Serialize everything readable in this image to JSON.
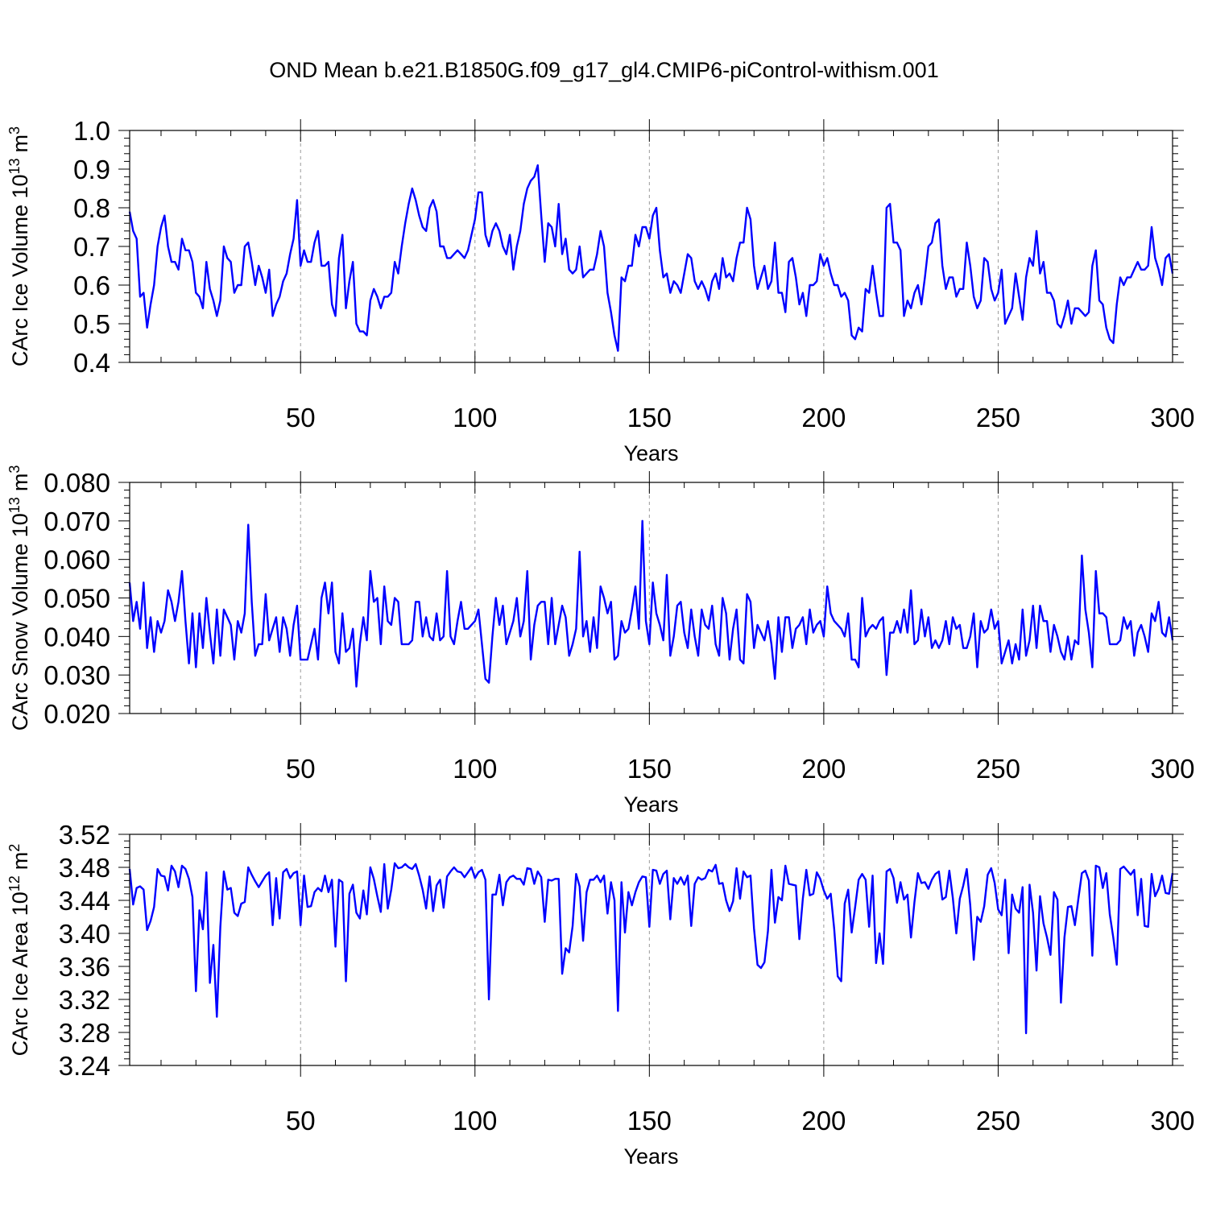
{
  "title": "OND Mean b.e21.B1850G.f09_g17_gl4.CMIP6-piControl-withism.001",
  "colors": {
    "line": "#0000ff",
    "axis": "#000000",
    "grid": "#9a9a9a"
  },
  "chart_data": [
    {
      "type": "line",
      "ylabel": "CArc Ice Volume 10",
      "ylabel_exponent": "13",
      "ylabel_unit": "m",
      "ylabel_unit_exponent": "3",
      "xlabel": "Years",
      "xlim": [
        1,
        300
      ],
      "ylim": [
        0.4,
        1.0
      ],
      "xticks": [
        50,
        100,
        150,
        200,
        250,
        300
      ],
      "xtick_labels": [
        "50",
        "100",
        "150",
        "200",
        "250",
        "300"
      ],
      "yticks": [
        0.4,
        0.5,
        0.6,
        0.7,
        0.8,
        0.9,
        1.0
      ],
      "ytick_labels": [
        "0.4",
        "0.5",
        "0.6",
        "0.7",
        "0.8",
        "0.9",
        "1.0"
      ],
      "grid": "vertical dashed",
      "series": [
        {
          "name": "CArc Ice Volume",
          "values": [
            0.79,
            0.74,
            0.72,
            0.57,
            0.58,
            0.49,
            0.55,
            0.6,
            0.7,
            0.75,
            0.78,
            0.7,
            0.66,
            0.66,
            0.64,
            0.72,
            0.69,
            0.69,
            0.66,
            0.58,
            0.57,
            0.54,
            0.66,
            0.59,
            0.56,
            0.52,
            0.56,
            0.7,
            0.67,
            0.66,
            0.58,
            0.6,
            0.6,
            0.7,
            0.71,
            0.66,
            0.6,
            0.65,
            0.62,
            0.58,
            0.64,
            0.52,
            0.55,
            0.57,
            0.61,
            0.63,
            0.68,
            0.72,
            0.82,
            0.65,
            0.69,
            0.66,
            0.66,
            0.71,
            0.74,
            0.65,
            0.65,
            0.66,
            0.55,
            0.52,
            0.67,
            0.73,
            0.54,
            0.61,
            0.66,
            0.5,
            0.48,
            0.48,
            0.47,
            0.56,
            0.59,
            0.57,
            0.54,
            0.57,
            0.57,
            0.58,
            0.66,
            0.63,
            0.7,
            0.76,
            0.81,
            0.85,
            0.82,
            0.78,
            0.75,
            0.74,
            0.8,
            0.82,
            0.79,
            0.7,
            0.7,
            0.67,
            0.67,
            0.68,
            0.69,
            0.68,
            0.67,
            0.69,
            0.73,
            0.77,
            0.84,
            0.84,
            0.73,
            0.7,
            0.74,
            0.76,
            0.74,
            0.7,
            0.68,
            0.73,
            0.64,
            0.7,
            0.74,
            0.81,
            0.85,
            0.87,
            0.88,
            0.91,
            0.78,
            0.66,
            0.76,
            0.75,
            0.7,
            0.81,
            0.68,
            0.72,
            0.64,
            0.63,
            0.64,
            0.7,
            0.62,
            0.63,
            0.64,
            0.64,
            0.68,
            0.74,
            0.7,
            0.58,
            0.53,
            0.47,
            0.43,
            0.62,
            0.61,
            0.65,
            0.65,
            0.73,
            0.7,
            0.75,
            0.75,
            0.72,
            0.78,
            0.8,
            0.69,
            0.62,
            0.63,
            0.58,
            0.61,
            0.6,
            0.58,
            0.63,
            0.68,
            0.67,
            0.61,
            0.59,
            0.61,
            0.59,
            0.56,
            0.61,
            0.63,
            0.59,
            0.67,
            0.62,
            0.63,
            0.61,
            0.67,
            0.71,
            0.71,
            0.8,
            0.77,
            0.65,
            0.59,
            0.62,
            0.65,
            0.59,
            0.61,
            0.71,
            0.58,
            0.58,
            0.53,
            0.66,
            0.67,
            0.62,
            0.55,
            0.58,
            0.52,
            0.6,
            0.6,
            0.61,
            0.68,
            0.65,
            0.67,
            0.63,
            0.6,
            0.6,
            0.57,
            0.58,
            0.56,
            0.47,
            0.46,
            0.49,
            0.48,
            0.59,
            0.58,
            0.65,
            0.58,
            0.52,
            0.52,
            0.8,
            0.81,
            0.71,
            0.71,
            0.69,
            0.52,
            0.56,
            0.54,
            0.58,
            0.6,
            0.55,
            0.62,
            0.7,
            0.71,
            0.76,
            0.77,
            0.65,
            0.59,
            0.62,
            0.62,
            0.57,
            0.59,
            0.59,
            0.71,
            0.65,
            0.57,
            0.54,
            0.56,
            0.67,
            0.66,
            0.59,
            0.56,
            0.58,
            0.64,
            0.5,
            0.52,
            0.54,
            0.63,
            0.57,
            0.51,
            0.62,
            0.67,
            0.65,
            0.74,
            0.63,
            0.66,
            0.58,
            0.58,
            0.56,
            0.5,
            0.49,
            0.52,
            0.56,
            0.5,
            0.54,
            0.54,
            0.53,
            0.52,
            0.53,
            0.65,
            0.69,
            0.56,
            0.55,
            0.49,
            0.46,
            0.45,
            0.55,
            0.62,
            0.6,
            0.62,
            0.62,
            0.64,
            0.66,
            0.64,
            0.64,
            0.65,
            0.75,
            0.67,
            0.64,
            0.6,
            0.67,
            0.68,
            0.63
          ]
        }
      ]
    },
    {
      "type": "line",
      "ylabel": "CArc Snow Volume 10",
      "ylabel_exponent": "13",
      "ylabel_unit": "m",
      "ylabel_unit_exponent": "3",
      "xlabel": "Years",
      "xlim": [
        1,
        300
      ],
      "ylim": [
        0.02,
        0.08
      ],
      "xticks": [
        50,
        100,
        150,
        200,
        250,
        300
      ],
      "xtick_labels": [
        "50",
        "100",
        "150",
        "200",
        "250",
        "300"
      ],
      "yticks": [
        0.02,
        0.03,
        0.04,
        0.05,
        0.06,
        0.07,
        0.08
      ],
      "ytick_labels": [
        "0.020",
        "0.030",
        "0.040",
        "0.050",
        "0.060",
        "0.070",
        "0.080"
      ],
      "grid": "vertical dashed",
      "series": [
        {
          "name": "CArc Snow Volume",
          "values": [
            0.054,
            0.044,
            0.049,
            0.042,
            0.054,
            0.037,
            0.045,
            0.036,
            0.044,
            0.041,
            0.044,
            0.052,
            0.049,
            0.044,
            0.049,
            0.057,
            0.044,
            0.033,
            0.046,
            0.032,
            0.046,
            0.037,
            0.05,
            0.041,
            0.033,
            0.047,
            0.035,
            0.047,
            0.045,
            0.043,
            0.034,
            0.044,
            0.041,
            0.046,
            0.069,
            0.049,
            0.035,
            0.038,
            0.038,
            0.051,
            0.039,
            0.042,
            0.045,
            0.036,
            0.045,
            0.042,
            0.035,
            0.043,
            0.048,
            0.034,
            0.034,
            0.034,
            0.038,
            0.042,
            0.034,
            0.05,
            0.054,
            0.046,
            0.054,
            0.036,
            0.033,
            0.046,
            0.036,
            0.037,
            0.042,
            0.027,
            0.038,
            0.045,
            0.039,
            0.057,
            0.049,
            0.05,
            0.038,
            0.053,
            0.044,
            0.043,
            0.05,
            0.049,
            0.038,
            0.038,
            0.038,
            0.039,
            0.049,
            0.049,
            0.04,
            0.045,
            0.04,
            0.039,
            0.046,
            0.039,
            0.04,
            0.057,
            0.04,
            0.038,
            0.044,
            0.049,
            0.042,
            0.042,
            0.043,
            0.044,
            0.047,
            0.038,
            0.029,
            0.028,
            0.04,
            0.05,
            0.043,
            0.048,
            0.038,
            0.041,
            0.044,
            0.05,
            0.04,
            0.044,
            0.057,
            0.034,
            0.043,
            0.048,
            0.049,
            0.049,
            0.038,
            0.05,
            0.038,
            0.043,
            0.048,
            0.045,
            0.035,
            0.038,
            0.042,
            0.062,
            0.04,
            0.044,
            0.036,
            0.045,
            0.037,
            0.053,
            0.05,
            0.046,
            0.049,
            0.034,
            0.035,
            0.044,
            0.041,
            0.042,
            0.047,
            0.053,
            0.042,
            0.07,
            0.044,
            0.038,
            0.054,
            0.046,
            0.043,
            0.039,
            0.056,
            0.035,
            0.04,
            0.048,
            0.049,
            0.041,
            0.037,
            0.047,
            0.04,
            0.035,
            0.047,
            0.043,
            0.042,
            0.048,
            0.038,
            0.035,
            0.05,
            0.046,
            0.034,
            0.042,
            0.047,
            0.034,
            0.033,
            0.051,
            0.049,
            0.037,
            0.043,
            0.041,
            0.039,
            0.044,
            0.038,
            0.029,
            0.045,
            0.036,
            0.045,
            0.045,
            0.037,
            0.042,
            0.043,
            0.045,
            0.038,
            0.047,
            0.041,
            0.043,
            0.044,
            0.04,
            0.053,
            0.046,
            0.044,
            0.043,
            0.042,
            0.04,
            0.046,
            0.034,
            0.034,
            0.032,
            0.05,
            0.04,
            0.042,
            0.043,
            0.042,
            0.044,
            0.045,
            0.03,
            0.041,
            0.041,
            0.044,
            0.041,
            0.047,
            0.041,
            0.052,
            0.038,
            0.039,
            0.047,
            0.04,
            0.045,
            0.037,
            0.039,
            0.037,
            0.039,
            0.044,
            0.038,
            0.045,
            0.042,
            0.043,
            0.037,
            0.037,
            0.04,
            0.046,
            0.032,
            0.044,
            0.041,
            0.042,
            0.047,
            0.042,
            0.044,
            0.033,
            0.036,
            0.039,
            0.033,
            0.038,
            0.034,
            0.047,
            0.035,
            0.039,
            0.048,
            0.037,
            0.048,
            0.044,
            0.044,
            0.036,
            0.043,
            0.04,
            0.036,
            0.034,
            0.04,
            0.034,
            0.039,
            0.038,
            0.061,
            0.047,
            0.041,
            0.032,
            0.057,
            0.046,
            0.046,
            0.045,
            0.038,
            0.038,
            0.038,
            0.039,
            0.045,
            0.042,
            0.044,
            0.035,
            0.041,
            0.043,
            0.04,
            0.036,
            0.046,
            0.044,
            0.049,
            0.041,
            0.04,
            0.045,
            0.039
          ]
        }
      ]
    },
    {
      "type": "line",
      "ylabel": "CArc Ice Area 10",
      "ylabel_exponent": "12",
      "ylabel_unit": "m",
      "ylabel_unit_exponent": "2",
      "xlabel": "Years",
      "xlim": [
        1,
        300
      ],
      "ylim": [
        3.24,
        3.52
      ],
      "xticks": [
        50,
        100,
        150,
        200,
        250,
        300
      ],
      "xtick_labels": [
        "50",
        "100",
        "150",
        "200",
        "250",
        "300"
      ],
      "yticks": [
        3.24,
        3.28,
        3.32,
        3.36,
        3.4,
        3.44,
        3.48,
        3.52
      ],
      "ytick_labels": [
        "3.24",
        "3.28",
        "3.32",
        "3.36",
        "3.40",
        "3.44",
        "3.48",
        "3.52"
      ],
      "grid": "vertical dashed",
      "series": [
        {
          "name": "CArc Ice Area",
          "values": [
            3.478,
            3.435,
            3.455,
            3.457,
            3.453,
            3.404,
            3.415,
            3.432,
            3.478,
            3.47,
            3.469,
            3.452,
            3.482,
            3.475,
            3.456,
            3.482,
            3.478,
            3.466,
            3.444,
            3.33,
            3.428,
            3.405,
            3.474,
            3.34,
            3.386,
            3.299,
            3.408,
            3.475,
            3.453,
            3.455,
            3.425,
            3.421,
            3.436,
            3.438,
            3.48,
            3.471,
            3.463,
            3.456,
            3.463,
            3.47,
            3.474,
            3.41,
            3.467,
            3.418,
            3.474,
            3.478,
            3.467,
            3.473,
            3.475,
            3.41,
            3.47,
            3.432,
            3.433,
            3.45,
            3.455,
            3.451,
            3.47,
            3.45,
            3.465,
            3.384,
            3.465,
            3.462,
            3.342,
            3.448,
            3.459,
            3.425,
            3.418,
            3.452,
            3.423,
            3.48,
            3.466,
            3.445,
            3.426,
            3.484,
            3.43,
            3.453,
            3.485,
            3.479,
            3.48,
            3.484,
            3.48,
            3.478,
            3.484,
            3.47,
            3.453,
            3.43,
            3.469,
            3.427,
            3.458,
            3.465,
            3.431,
            3.469,
            3.475,
            3.48,
            3.475,
            3.474,
            3.468,
            3.474,
            3.48,
            3.467,
            3.474,
            3.477,
            3.465,
            3.32,
            3.447,
            3.447,
            3.471,
            3.434,
            3.462,
            3.468,
            3.47,
            3.466,
            3.466,
            3.459,
            3.479,
            3.478,
            3.46,
            3.475,
            3.468,
            3.414,
            3.465,
            3.464,
            3.466,
            3.466,
            3.351,
            3.382,
            3.377,
            3.409,
            3.472,
            3.457,
            3.391,
            3.45,
            3.465,
            3.465,
            3.47,
            3.462,
            3.47,
            3.424,
            3.462,
            3.44,
            3.306,
            3.462,
            3.401,
            3.45,
            3.434,
            3.45,
            3.462,
            3.469,
            3.468,
            3.408,
            3.477,
            3.476,
            3.46,
            3.472,
            3.476,
            3.417,
            3.467,
            3.46,
            3.468,
            3.459,
            3.47,
            3.409,
            3.46,
            3.468,
            3.465,
            3.467,
            3.477,
            3.475,
            3.483,
            3.46,
            3.461,
            3.44,
            3.427,
            3.439,
            3.479,
            3.442,
            3.475,
            3.468,
            3.47,
            3.406,
            3.362,
            3.358,
            3.365,
            3.403,
            3.477,
            3.413,
            3.444,
            3.44,
            3.482,
            3.46,
            3.459,
            3.458,
            3.393,
            3.442,
            3.477,
            3.446,
            3.448,
            3.474,
            3.466,
            3.452,
            3.442,
            3.448,
            3.405,
            3.348,
            3.342,
            3.436,
            3.453,
            3.401,
            3.432,
            3.465,
            3.472,
            3.465,
            3.408,
            3.47,
            3.364,
            3.4,
            3.363,
            3.475,
            3.478,
            3.467,
            3.437,
            3.462,
            3.441,
            3.447,
            3.395,
            3.438,
            3.473,
            3.461,
            3.462,
            3.454,
            3.465,
            3.472,
            3.475,
            3.441,
            3.444,
            3.476,
            3.443,
            3.4,
            3.442,
            3.458,
            3.478,
            3.434,
            3.368,
            3.42,
            3.414,
            3.433,
            3.471,
            3.479,
            3.461,
            3.429,
            3.422,
            3.465,
            3.376,
            3.447,
            3.43,
            3.425,
            3.456,
            3.279,
            3.459,
            3.425,
            3.355,
            3.445,
            3.412,
            3.395,
            3.374,
            3.45,
            3.441,
            3.316,
            3.395,
            3.432,
            3.433,
            3.41,
            3.442,
            3.473,
            3.476,
            3.464,
            3.373,
            3.482,
            3.48,
            3.455,
            3.473,
            3.423,
            3.395,
            3.362,
            3.478,
            3.481,
            3.476,
            3.471,
            3.477,
            3.422,
            3.466,
            3.409,
            3.408,
            3.472,
            3.445,
            3.454,
            3.47,
            3.449,
            3.448,
            3.473
          ]
        }
      ]
    }
  ]
}
